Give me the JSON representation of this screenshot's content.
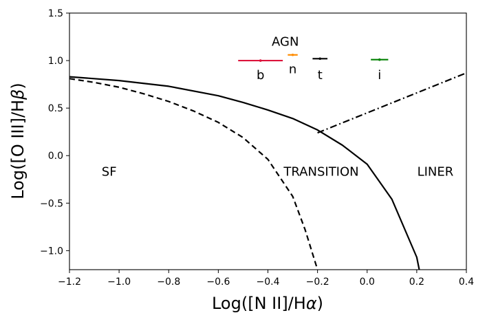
{
  "chart_data": {
    "type": "line",
    "title": "",
    "xlabel": "Log([N II]/H",
    "xlabel_greek": "α",
    "xlabel_suffix": ")",
    "ylabel": "Log([O III]/H",
    "ylabel_greek": "β",
    "ylabel_suffix": ")",
    "xlim": [
      -1.2,
      0.4
    ],
    "ylim": [
      -1.2,
      1.5
    ],
    "xticks": [
      -1.2,
      -1.0,
      -0.8,
      -0.6,
      -0.4,
      -0.2,
      0.0,
      0.2,
      0.4
    ],
    "xtick_labels": [
      "−1.2",
      "−1.0",
      "−0.8",
      "−0.6",
      "−0.4",
      "−0.2",
      "0.0",
      "0.2",
      "0.4"
    ],
    "yticks": [
      -1.0,
      -0.5,
      0.0,
      0.5,
      1.0,
      1.5
    ],
    "ytick_labels": [
      "−1.0",
      "−0.5",
      "0.0",
      "0.5",
      "1.0",
      "1.5"
    ],
    "grid": false,
    "series": [
      {
        "style": "solid",
        "color": "#000000",
        "x": [
          -1.2,
          -1.0,
          -0.8,
          -0.6,
          -0.5,
          -0.4,
          -0.3,
          -0.2,
          -0.1,
          0.0,
          0.1,
          0.2,
          0.21
        ],
        "y": [
          0.83,
          0.79,
          0.73,
          0.63,
          0.56,
          0.48,
          0.39,
          0.27,
          0.11,
          -0.09,
          -0.46,
          -1.07,
          -1.2
        ]
      },
      {
        "style": "dashed",
        "color": "#000000",
        "x": [
          -1.2,
          -1.1,
          -1.0,
          -0.9,
          -0.8,
          -0.7,
          -0.6,
          -0.5,
          -0.4,
          -0.3,
          -0.25,
          -0.2
        ],
        "y": [
          0.81,
          0.77,
          0.72,
          0.65,
          0.57,
          0.47,
          0.35,
          0.19,
          -0.04,
          -0.43,
          -0.78,
          -1.2
        ]
      },
      {
        "style": "dashdot",
        "color": "#000000",
        "x": [
          -0.2,
          0.4
        ],
        "y": [
          0.24,
          0.87
        ]
      }
    ],
    "points": [
      {
        "label": "b",
        "x": -0.43,
        "y": 1.0,
        "xerr_low": 0.09,
        "xerr_high": 0.09,
        "color": "#dc143c",
        "label_x": -0.43,
        "label_y": 0.85
      },
      {
        "label": "n",
        "x": -0.3,
        "y": 1.06,
        "xerr_low": 0.02,
        "xerr_high": 0.02,
        "color": "#ff8c00",
        "label_x": -0.3,
        "label_y": 0.91
      },
      {
        "label": "t",
        "x": -0.19,
        "y": 1.02,
        "xerr_low": 0.03,
        "xerr_high": 0.03,
        "color": "#000000",
        "label_x": -0.19,
        "label_y": 0.85
      },
      {
        "label": "i",
        "x": 0.05,
        "y": 1.01,
        "xerr_low": 0.035,
        "xerr_high": 0.035,
        "color": "#008000",
        "label_x": 0.05,
        "label_y": 0.85
      }
    ],
    "annotations": [
      {
        "text": "AGN",
        "x": -0.33,
        "y": 1.2
      },
      {
        "text": "SF",
        "x": -1.04,
        "y": -0.17
      },
      {
        "text": "TRANSITION",
        "x": -0.185,
        "y": -0.17
      },
      {
        "text": "LINER",
        "x": 0.275,
        "y": -0.17
      }
    ]
  }
}
